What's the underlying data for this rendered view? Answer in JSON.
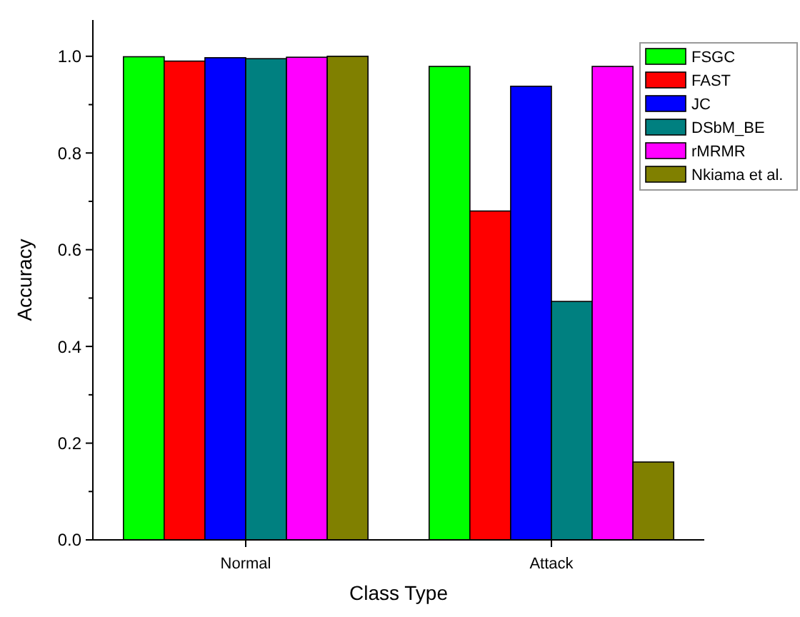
{
  "chart_data": {
    "type": "bar",
    "xlabel": "Class Type",
    "ylabel": "Accuracy",
    "categories": [
      "Normal",
      "Attack"
    ],
    "series": [
      {
        "name": "FSGC",
        "color": "#00ff00",
        "values": [
          0.999,
          0.979
        ]
      },
      {
        "name": "FAST",
        "color": "#ff0000",
        "values": [
          0.99,
          0.68
        ]
      },
      {
        "name": "JC",
        "color": "#0000ff",
        "values": [
          0.997,
          0.938
        ]
      },
      {
        "name": "DSbM_BE",
        "color": "#008080",
        "values": [
          0.995,
          0.493
        ]
      },
      {
        "name": "rMRMR",
        "color": "#ff00ff",
        "values": [
          0.998,
          0.979
        ]
      },
      {
        "name": "Nkiama et al.",
        "color": "#808000",
        "values": [
          1.0,
          0.161
        ]
      }
    ],
    "ylim": [
      0,
      1.075
    ],
    "yticks": [
      {
        "value": 0,
        "label": "0.0"
      },
      {
        "value": 0.1,
        "label": null
      },
      {
        "value": 0.2,
        "label": "0.2"
      },
      {
        "value": 0.3,
        "label": null
      },
      {
        "value": 0.4,
        "label": "0.4"
      },
      {
        "value": 0.5,
        "label": null
      },
      {
        "value": 0.6,
        "label": "0.6"
      },
      {
        "value": 0.7,
        "label": null
      },
      {
        "value": 0.8,
        "label": "0.8"
      },
      {
        "value": 0.9,
        "label": null
      },
      {
        "value": 1.0,
        "label": "1.0"
      }
    ],
    "legend": "top right",
    "grid": false
  }
}
